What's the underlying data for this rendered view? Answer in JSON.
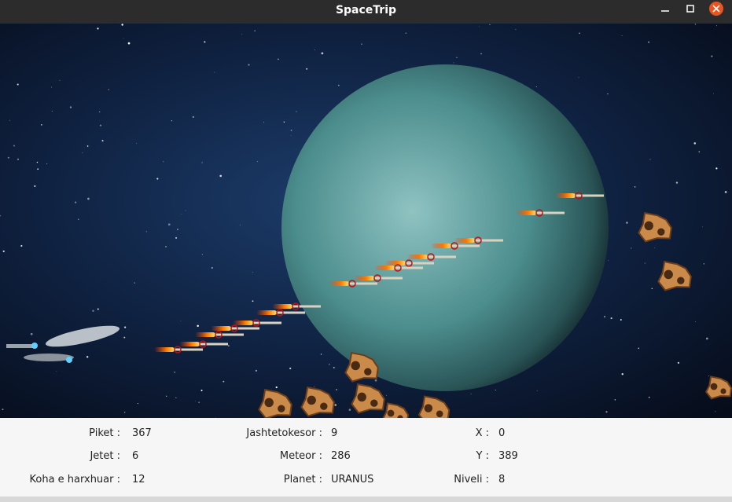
{
  "window": {
    "title": "SpaceTrip"
  },
  "stats": [
    {
      "label": "Piket :",
      "value": "367"
    },
    {
      "label": "Jetet :",
      "value": "6"
    },
    {
      "label": "Koha e harxhuar :",
      "value": "12"
    },
    {
      "label": "Jashtetokesor :",
      "value": "9"
    },
    {
      "label": "Meteor :",
      "value": "286"
    },
    {
      "label": "Planet :",
      "value": "URANUS"
    },
    {
      "label": "X :",
      "value": "0"
    },
    {
      "label": "Y :",
      "value": "389"
    },
    {
      "label": "Niveli :",
      "value": "8"
    }
  ]
}
